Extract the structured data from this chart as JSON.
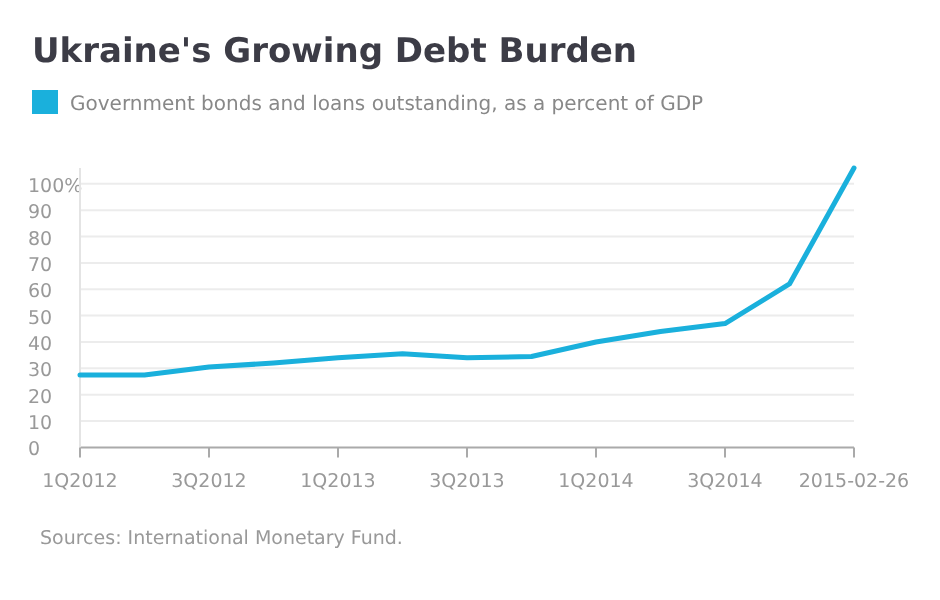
{
  "chart_data": {
    "type": "line",
    "title": "Ukraine's Growing Debt Burden",
    "categories": [
      "1Q2012",
      null,
      "3Q2012",
      null,
      "1Q2013",
      null,
      "3Q2013",
      null,
      "1Q2014",
      null,
      "3Q2014",
      null,
      "2015-02-26"
    ],
    "series": [
      {
        "name": "Government bonds and loans outstanding, as a percent of GDP",
        "color": "#1ab0dc",
        "values": [
          27.5,
          27.5,
          30.5,
          32,
          34,
          35.5,
          34,
          34.5,
          40,
          44,
          47,
          62,
          106
        ]
      }
    ],
    "ylim": [
      0,
      106
    ],
    "yticks": [
      0,
      10,
      20,
      30,
      40,
      50,
      60,
      70,
      80,
      90,
      {
        "value": 100,
        "label": "100%"
      }
    ],
    "grid": "y",
    "legend": "top left",
    "marker": "none",
    "line_style": "solid",
    "annotations": [
      "Sources: International Monetary Fund."
    ]
  }
}
